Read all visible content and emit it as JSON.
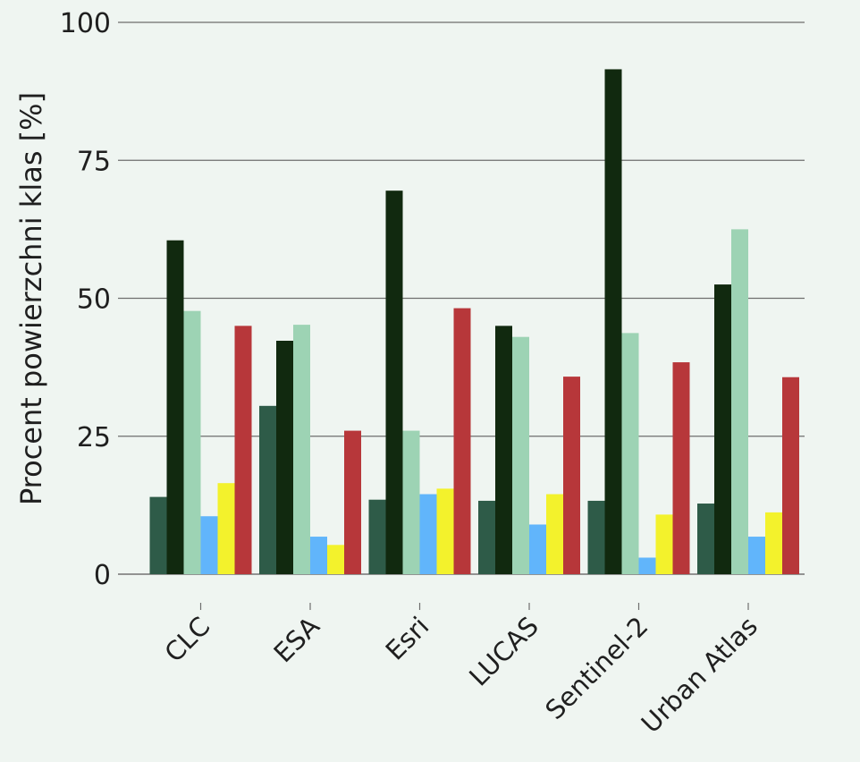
{
  "chart_data": {
    "type": "bar",
    "title": "",
    "xlabel": "",
    "ylabel": "Procent powierzchni klas [%]",
    "ylim": [
      0,
      100
    ],
    "yticks": [
      0,
      25,
      50,
      75,
      100
    ],
    "grid": true,
    "categories": [
      "CLC",
      "ESA",
      "Esri",
      "LUCAS",
      "Sentinel-2",
      "Urban Atlas"
    ],
    "series": [
      {
        "color": "#2e5b48",
        "values": [
          14,
          30.5,
          13.5,
          13.3,
          13.3,
          12.8
        ]
      },
      {
        "color": "#11290f",
        "values": [
          60.5,
          42.3,
          69.5,
          45,
          91.5,
          52.5
        ]
      },
      {
        "color": "#9dd3b4",
        "values": [
          47.7,
          45.2,
          26,
          43,
          43.7,
          62.5
        ]
      },
      {
        "color": "#61b5fb",
        "values": [
          10.5,
          6.8,
          14.5,
          9,
          3,
          6.8
        ]
      },
      {
        "color": "#f3f22c",
        "values": [
          16.5,
          5.3,
          15.5,
          14.5,
          10.8,
          11.2
        ]
      },
      {
        "color": "#b7373a",
        "values": [
          45,
          26,
          48.2,
          35.8,
          38.4,
          35.7
        ]
      }
    ]
  }
}
